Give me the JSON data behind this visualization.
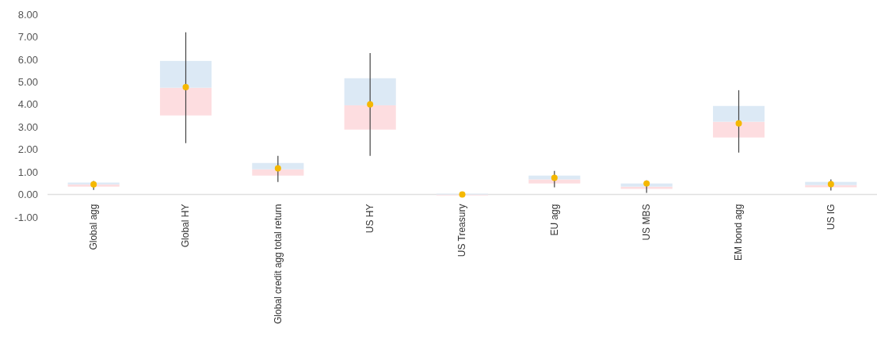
{
  "chart_data": {
    "type": "box",
    "categories": [
      "Global agg",
      "Global HY",
      "Global credit agg total return",
      "US HY",
      "US Treasury",
      "EU agg",
      "US MBS",
      "EM bond agg",
      "US IG"
    ],
    "ylim": [
      -1,
      8
    ],
    "yticks": [
      {
        "value": -1,
        "label": "-1.00"
      },
      {
        "value": 0,
        "label": "0.00"
      },
      {
        "value": 1,
        "label": "1.00"
      },
      {
        "value": 2,
        "label": "2.00"
      },
      {
        "value": 3,
        "label": "3.00"
      },
      {
        "value": 4,
        "label": "4.00"
      },
      {
        "value": 5,
        "label": "5.00"
      },
      {
        "value": 6,
        "label": "6.00"
      },
      {
        "value": 7,
        "label": "7.00"
      },
      {
        "value": 8,
        "label": "8.00"
      }
    ],
    "grid": false,
    "marker": "circle",
    "series": [
      {
        "color": "#fddde0",
        "boxes": [
          {
            "low": 0.2,
            "q1": 0.35,
            "median": 0.45,
            "q3": 0.53,
            "high": 0.6
          },
          {
            "low": 2.28,
            "q1": 3.51,
            "median": 4.74,
            "q3": 5.93,
            "high": 7.2
          },
          {
            "low": 0.56,
            "q1": 0.84,
            "median": 1.12,
            "q3": 1.4,
            "high": 1.72
          },
          {
            "low": 1.72,
            "q1": 2.88,
            "median": 3.96,
            "q3": 5.16,
            "high": 6.28
          },
          {
            "low": 0,
            "q1": 0,
            "median": 0,
            "q3": 0,
            "high": 0
          },
          {
            "low": 0.32,
            "q1": 0.49,
            "median": 0.67,
            "q3": 0.84,
            "high": 1.05
          },
          {
            "low": 0.07,
            "q1": 0.25,
            "median": 0.35,
            "q3": 0.49,
            "high": 0.63
          },
          {
            "low": 1.86,
            "q1": 2.53,
            "median": 3.23,
            "q3": 3.93,
            "high": 4.63
          },
          {
            "low": 0.18,
            "q1": 0.32,
            "median": 0.42,
            "q3": 0.56,
            "high": 0.67
          }
        ]
      },
      {
        "type": "scatter",
        "color": "#f5b800",
        "x": [
          "Global agg",
          "Global HY",
          "Global credit agg total return",
          "US HY",
          "US Treasury",
          "EU agg",
          "US MBS",
          "EM bond agg",
          "US IG"
        ],
        "values": [
          0.45,
          4.77,
          1.16,
          4.0,
          0,
          0.74,
          0.49,
          3.16,
          0.46
        ]
      }
    ]
  }
}
